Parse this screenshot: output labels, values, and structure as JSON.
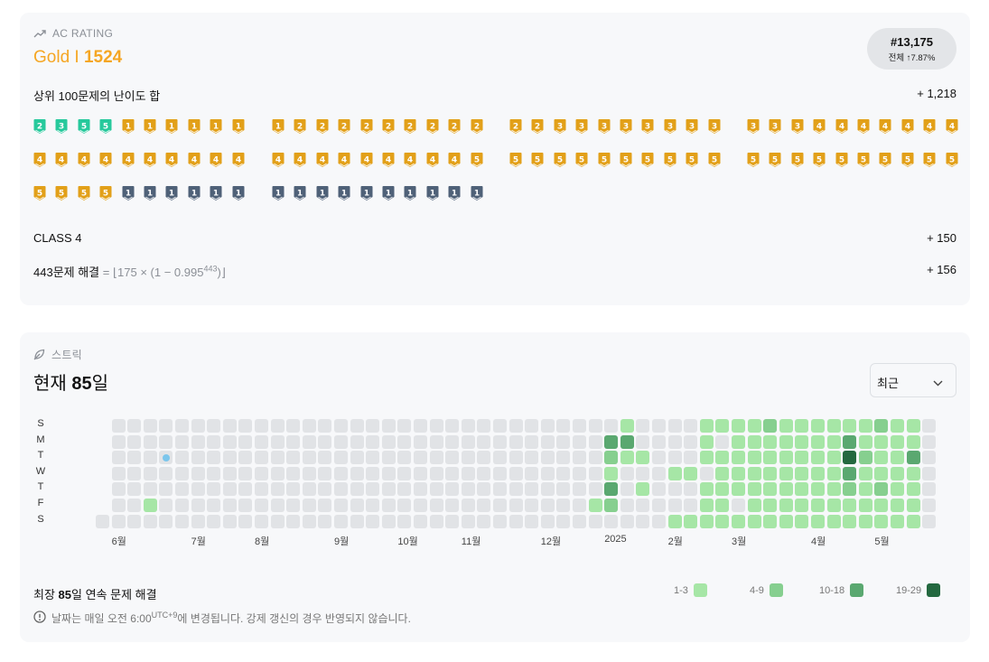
{
  "rating": {
    "eyebrow": "AC RATING",
    "tier_name": "Gold I",
    "tier_score": "1524",
    "rank": "#13,175",
    "rank_sub": "전체 ↑7.87%",
    "top100_label": "상위 100문제의 난이도 합",
    "top100_value": "+ 1,218",
    "class_label": "CLASS 4",
    "class_value": "+ 150",
    "solved_label": "443문제 해결",
    "formula_prefix": "= ⌊175 × (1 − 0.995",
    "formula_exp": "443",
    "formula_suffix": ")⌋",
    "solved_value": "+ 156",
    "badge_colors": {
      "gold": "#e2a019",
      "silver": "#4f6178",
      "green": "#27c99c"
    },
    "badge_rows": [
      [
        {
          "t": "green",
          "n": "2"
        },
        {
          "t": "green",
          "n": "3"
        },
        {
          "t": "green",
          "n": "5"
        },
        {
          "t": "green",
          "n": "5"
        },
        {
          "t": "gold",
          "n": "1"
        },
        {
          "t": "gold",
          "n": "1"
        },
        {
          "t": "gold",
          "n": "1"
        },
        {
          "t": "gold",
          "n": "1"
        },
        {
          "t": "gold",
          "n": "1"
        },
        {
          "t": "gold",
          "n": "1"
        },
        {
          "t": "gold",
          "n": "1"
        },
        {
          "t": "gold",
          "n": "2"
        },
        {
          "t": "gold",
          "n": "2"
        },
        {
          "t": "gold",
          "n": "2"
        },
        {
          "t": "gold",
          "n": "2"
        },
        {
          "t": "gold",
          "n": "2"
        },
        {
          "t": "gold",
          "n": "2"
        },
        {
          "t": "gold",
          "n": "2"
        },
        {
          "t": "gold",
          "n": "2"
        },
        {
          "t": "gold",
          "n": "2"
        },
        {
          "t": "gold",
          "n": "2"
        },
        {
          "t": "gold",
          "n": "2"
        },
        {
          "t": "gold",
          "n": "3"
        },
        {
          "t": "gold",
          "n": "3"
        },
        {
          "t": "gold",
          "n": "3"
        },
        {
          "t": "gold",
          "n": "3"
        },
        {
          "t": "gold",
          "n": "3"
        },
        {
          "t": "gold",
          "n": "3"
        },
        {
          "t": "gold",
          "n": "3"
        },
        {
          "t": "gold",
          "n": "3"
        },
        {
          "t": "gold",
          "n": "3"
        },
        {
          "t": "gold",
          "n": "3"
        },
        {
          "t": "gold",
          "n": "3"
        },
        {
          "t": "gold",
          "n": "4"
        },
        {
          "t": "gold",
          "n": "4"
        },
        {
          "t": "gold",
          "n": "4"
        },
        {
          "t": "gold",
          "n": "4"
        },
        {
          "t": "gold",
          "n": "4"
        },
        {
          "t": "gold",
          "n": "4"
        },
        {
          "t": "gold",
          "n": "4"
        }
      ],
      [
        {
          "t": "gold",
          "n": "4"
        },
        {
          "t": "gold",
          "n": "4"
        },
        {
          "t": "gold",
          "n": "4"
        },
        {
          "t": "gold",
          "n": "4"
        },
        {
          "t": "gold",
          "n": "4"
        },
        {
          "t": "gold",
          "n": "4"
        },
        {
          "t": "gold",
          "n": "4"
        },
        {
          "t": "gold",
          "n": "4"
        },
        {
          "t": "gold",
          "n": "4"
        },
        {
          "t": "gold",
          "n": "4"
        },
        {
          "t": "gold",
          "n": "4"
        },
        {
          "t": "gold",
          "n": "4"
        },
        {
          "t": "gold",
          "n": "4"
        },
        {
          "t": "gold",
          "n": "4"
        },
        {
          "t": "gold",
          "n": "4"
        },
        {
          "t": "gold",
          "n": "4"
        },
        {
          "t": "gold",
          "n": "4"
        },
        {
          "t": "gold",
          "n": "4"
        },
        {
          "t": "gold",
          "n": "4"
        },
        {
          "t": "gold",
          "n": "5"
        },
        {
          "t": "gold",
          "n": "5"
        },
        {
          "t": "gold",
          "n": "5"
        },
        {
          "t": "gold",
          "n": "5"
        },
        {
          "t": "gold",
          "n": "5"
        },
        {
          "t": "gold",
          "n": "5"
        },
        {
          "t": "gold",
          "n": "5"
        },
        {
          "t": "gold",
          "n": "5"
        },
        {
          "t": "gold",
          "n": "5"
        },
        {
          "t": "gold",
          "n": "5"
        },
        {
          "t": "gold",
          "n": "5"
        },
        {
          "t": "gold",
          "n": "5"
        },
        {
          "t": "gold",
          "n": "5"
        },
        {
          "t": "gold",
          "n": "5"
        },
        {
          "t": "gold",
          "n": "5"
        },
        {
          "t": "gold",
          "n": "5"
        },
        {
          "t": "gold",
          "n": "5"
        },
        {
          "t": "gold",
          "n": "5"
        },
        {
          "t": "gold",
          "n": "5"
        },
        {
          "t": "gold",
          "n": "5"
        },
        {
          "t": "gold",
          "n": "5"
        }
      ],
      [
        {
          "t": "gold",
          "n": "5"
        },
        {
          "t": "gold",
          "n": "5"
        },
        {
          "t": "gold",
          "n": "5"
        },
        {
          "t": "gold",
          "n": "5"
        },
        {
          "t": "silver",
          "n": "1"
        },
        {
          "t": "silver",
          "n": "1"
        },
        {
          "t": "silver",
          "n": "1"
        },
        {
          "t": "silver",
          "n": "1"
        },
        {
          "t": "silver",
          "n": "1"
        },
        {
          "t": "silver",
          "n": "1"
        },
        {
          "t": "silver",
          "n": "1"
        },
        {
          "t": "silver",
          "n": "1"
        },
        {
          "t": "silver",
          "n": "1"
        },
        {
          "t": "silver",
          "n": "1"
        },
        {
          "t": "silver",
          "n": "1"
        },
        {
          "t": "silver",
          "n": "1"
        },
        {
          "t": "silver",
          "n": "1"
        },
        {
          "t": "silver",
          "n": "1"
        },
        {
          "t": "silver",
          "n": "1"
        },
        {
          "t": "silver",
          "n": "1"
        }
      ]
    ]
  },
  "streak": {
    "eyebrow": "스트릭",
    "current_prefix": "현재 ",
    "current_days": "85",
    "current_suffix": "일",
    "range_select": "최근",
    "day_labels": [
      "S",
      "M",
      "T",
      "W",
      "T",
      "F",
      "S"
    ],
    "month_labels": [
      {
        "label": "6월",
        "col": 1
      },
      {
        "label": "7월",
        "col": 6
      },
      {
        "label": "8월",
        "col": 10
      },
      {
        "label": "9월",
        "col": 15
      },
      {
        "label": "10월",
        "col": 19
      },
      {
        "label": "11월",
        "col": 23
      },
      {
        "label": "12월",
        "col": 28
      },
      {
        "label": "2025",
        "col": 32
      },
      {
        "label": "2월",
        "col": 36
      },
      {
        "label": "3월",
        "col": 40
      },
      {
        "label": "4월",
        "col": 45
      },
      {
        "label": "5월",
        "col": 49
      }
    ],
    "colors": [
      "#e1e3e6",
      "#a6e6a6",
      "#86cf8f",
      "#5aa870",
      "#23683f"
    ],
    "marker_color": "#7cc6ec",
    "weeks": 53,
    "first_week_start_day": 6,
    "last_week_days": 7,
    "marker": {
      "week": 4,
      "day": 2
    },
    "heat": [
      {
        "w": 3,
        "d": 5,
        "l": 1
      },
      {
        "w": 31,
        "d": 5,
        "l": 1
      },
      {
        "w": 32,
        "d": 5,
        "l": 2
      },
      {
        "w": 32,
        "d": 1,
        "l": 3
      },
      {
        "w": 33,
        "d": 1,
        "l": 3
      },
      {
        "w": 32,
        "d": 2,
        "l": 2
      },
      {
        "w": 33,
        "d": 2,
        "l": 1
      },
      {
        "w": 34,
        "d": 2,
        "l": 1
      },
      {
        "w": 32,
        "d": 4,
        "l": 3
      },
      {
        "w": 34,
        "d": 4,
        "l": 1
      },
      {
        "w": 33,
        "d": 0,
        "l": 1
      },
      {
        "w": 32,
        "d": 3,
        "l": 1
      },
      {
        "w": 36,
        "d": 3,
        "l": 1
      },
      {
        "w": 37,
        "d": 3,
        "l": 1
      },
      {
        "w": 36,
        "d": 6,
        "l": 1
      },
      {
        "w": 37,
        "d": 6,
        "l": 1
      },
      {
        "w": 38,
        "d": 0,
        "l": 1
      },
      {
        "w": 38,
        "d": 1,
        "l": 1
      },
      {
        "w": 38,
        "d": 2,
        "l": 1
      },
      {
        "w": 38,
        "d": 4,
        "l": 1
      },
      {
        "w": 38,
        "d": 5,
        "l": 1
      },
      {
        "w": 38,
        "d": 6,
        "l": 1
      },
      {
        "w": 39,
        "d": 0,
        "l": 1
      },
      {
        "w": 39,
        "d": 2,
        "l": 1
      },
      {
        "w": 39,
        "d": 3,
        "l": 1
      },
      {
        "w": 39,
        "d": 4,
        "l": 1
      },
      {
        "w": 39,
        "d": 5,
        "l": 1
      },
      {
        "w": 39,
        "d": 6,
        "l": 1
      },
      {
        "w": 40,
        "d": 0,
        "l": 1
      },
      {
        "w": 40,
        "d": 1,
        "l": 1
      },
      {
        "w": 40,
        "d": 2,
        "l": 1
      },
      {
        "w": 40,
        "d": 3,
        "l": 1
      },
      {
        "w": 40,
        "d": 4,
        "l": 1
      },
      {
        "w": 40,
        "d": 6,
        "l": 1
      },
      {
        "w": 41,
        "d": 0,
        "l": 1
      },
      {
        "w": 41,
        "d": 1,
        "l": 1
      },
      {
        "w": 41,
        "d": 2,
        "l": 1
      },
      {
        "w": 41,
        "d": 3,
        "l": 1
      },
      {
        "w": 41,
        "d": 4,
        "l": 1
      },
      {
        "w": 41,
        "d": 5,
        "l": 1
      },
      {
        "w": 41,
        "d": 6,
        "l": 1
      },
      {
        "w": 42,
        "d": 0,
        "l": 2
      },
      {
        "w": 42,
        "d": 1,
        "l": 1
      },
      {
        "w": 42,
        "d": 2,
        "l": 1
      },
      {
        "w": 42,
        "d": 3,
        "l": 1
      },
      {
        "w": 42,
        "d": 4,
        "l": 1
      },
      {
        "w": 42,
        "d": 5,
        "l": 1
      },
      {
        "w": 42,
        "d": 6,
        "l": 1
      },
      {
        "w": 43,
        "d": 0,
        "l": 1
      },
      {
        "w": 43,
        "d": 1,
        "l": 1
      },
      {
        "w": 43,
        "d": 2,
        "l": 1
      },
      {
        "w": 43,
        "d": 3,
        "l": 1
      },
      {
        "w": 43,
        "d": 4,
        "l": 1
      },
      {
        "w": 43,
        "d": 5,
        "l": 1
      },
      {
        "w": 43,
        "d": 6,
        "l": 1
      },
      {
        "w": 44,
        "d": 0,
        "l": 1
      },
      {
        "w": 44,
        "d": 1,
        "l": 1
      },
      {
        "w": 44,
        "d": 2,
        "l": 1
      },
      {
        "w": 44,
        "d": 3,
        "l": 1
      },
      {
        "w": 44,
        "d": 4,
        "l": 1
      },
      {
        "w": 44,
        "d": 5,
        "l": 1
      },
      {
        "w": 44,
        "d": 6,
        "l": 1
      },
      {
        "w": 45,
        "d": 0,
        "l": 1
      },
      {
        "w": 45,
        "d": 1,
        "l": 1
      },
      {
        "w": 45,
        "d": 2,
        "l": 1
      },
      {
        "w": 45,
        "d": 3,
        "l": 1
      },
      {
        "w": 45,
        "d": 4,
        "l": 1
      },
      {
        "w": 45,
        "d": 5,
        "l": 1
      },
      {
        "w": 45,
        "d": 6,
        "l": 1
      },
      {
        "w": 46,
        "d": 0,
        "l": 1
      },
      {
        "w": 46,
        "d": 1,
        "l": 1
      },
      {
        "w": 46,
        "d": 2,
        "l": 1
      },
      {
        "w": 46,
        "d": 3,
        "l": 1
      },
      {
        "w": 46,
        "d": 4,
        "l": 1
      },
      {
        "w": 46,
        "d": 5,
        "l": 1
      },
      {
        "w": 46,
        "d": 6,
        "l": 1
      },
      {
        "w": 47,
        "d": 0,
        "l": 1
      },
      {
        "w": 47,
        "d": 1,
        "l": 3
      },
      {
        "w": 47,
        "d": 2,
        "l": 4
      },
      {
        "w": 47,
        "d": 3,
        "l": 3
      },
      {
        "w": 47,
        "d": 4,
        "l": 2
      },
      {
        "w": 47,
        "d": 5,
        "l": 1
      },
      {
        "w": 47,
        "d": 6,
        "l": 1
      },
      {
        "w": 48,
        "d": 0,
        "l": 1
      },
      {
        "w": 48,
        "d": 1,
        "l": 1
      },
      {
        "w": 48,
        "d": 2,
        "l": 2
      },
      {
        "w": 48,
        "d": 3,
        "l": 1
      },
      {
        "w": 48,
        "d": 4,
        "l": 1
      },
      {
        "w": 48,
        "d": 5,
        "l": 1
      },
      {
        "w": 48,
        "d": 6,
        "l": 1
      },
      {
        "w": 49,
        "d": 0,
        "l": 2
      },
      {
        "w": 49,
        "d": 1,
        "l": 1
      },
      {
        "w": 49,
        "d": 2,
        "l": 1
      },
      {
        "w": 49,
        "d": 3,
        "l": 1
      },
      {
        "w": 49,
        "d": 4,
        "l": 2
      },
      {
        "w": 49,
        "d": 5,
        "l": 1
      },
      {
        "w": 49,
        "d": 6,
        "l": 1
      },
      {
        "w": 50,
        "d": 0,
        "l": 1
      },
      {
        "w": 50,
        "d": 1,
        "l": 1
      },
      {
        "w": 50,
        "d": 2,
        "l": 1
      },
      {
        "w": 50,
        "d": 3,
        "l": 1
      },
      {
        "w": 50,
        "d": 4,
        "l": 1
      },
      {
        "w": 50,
        "d": 5,
        "l": 1
      },
      {
        "w": 50,
        "d": 6,
        "l": 1
      },
      {
        "w": 51,
        "d": 0,
        "l": 1
      },
      {
        "w": 51,
        "d": 1,
        "l": 1
      },
      {
        "w": 51,
        "d": 2,
        "l": 3
      },
      {
        "w": 51,
        "d": 3,
        "l": 1
      },
      {
        "w": 51,
        "d": 4,
        "l": 1
      },
      {
        "w": 51,
        "d": 5,
        "l": 1
      },
      {
        "w": 51,
        "d": 6,
        "l": 1
      }
    ],
    "longest_prefix": "최장 ",
    "longest_days": "85",
    "longest_suffix": "일 연속 문제 해결",
    "legend": [
      {
        "label": "1-3",
        "level": 1
      },
      {
        "label": "4-9",
        "level": 2
      },
      {
        "label": "10-18",
        "level": 3
      },
      {
        "label": "19-29",
        "level": 4
      }
    ],
    "note_prefix": "날짜는 매일 오전 6:00",
    "note_sup": "UTC+9",
    "note_suffix": "에 변경됩니다. 강제 갱신의 경우 반영되지 않습니다."
  }
}
